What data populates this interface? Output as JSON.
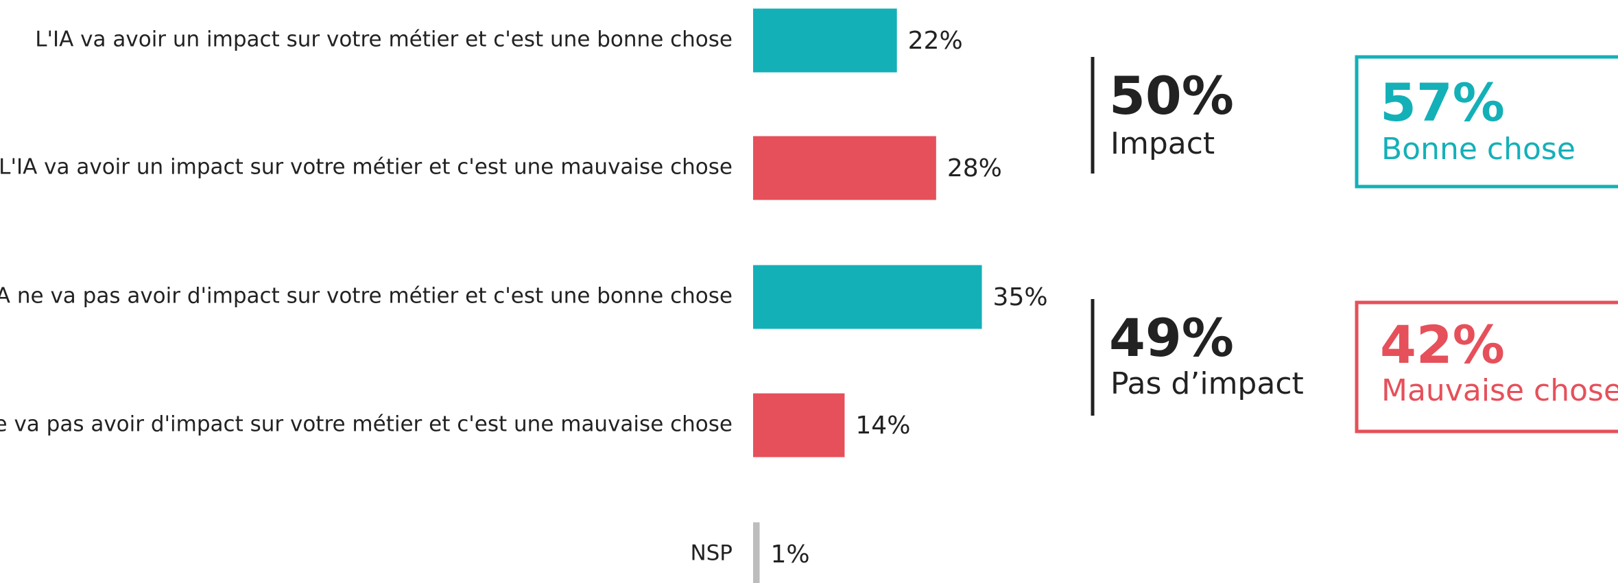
{
  "chart_data": {
    "type": "bar",
    "categories": [
      "L'IA va avoir un impact sur votre métier et c'est une bonne chose",
      "L'IA va avoir un impact sur votre métier et c'est une mauvaise chose",
      "L'IA ne va pas avoir d'impact sur votre métier et c'est une bonne chose",
      "L'IA ne va pas avoir d'impact sur votre métier et c'est une mauvaise chose",
      "NSP"
    ],
    "values": [
      22,
      28,
      35,
      14,
      1
    ],
    "value_labels": [
      "22%",
      "28%",
      "35%",
      "14%",
      "1%"
    ],
    "colors": [
      "#14b0b8",
      "#e6505a",
      "#14b0b8",
      "#e6505a",
      "#bdbdbd"
    ],
    "summaries": [
      {
        "value": "50%",
        "label": "Impact",
        "color": "#222222"
      },
      {
        "value": "49%",
        "label": "Pas d’impact",
        "color": "#222222"
      }
    ],
    "boxes": [
      {
        "value": "57%",
        "label": "Bonne chose",
        "color": "#14b0b8"
      },
      {
        "value": "42%",
        "label": "Mauvaise chose",
        "color": "#e6505a"
      }
    ]
  }
}
